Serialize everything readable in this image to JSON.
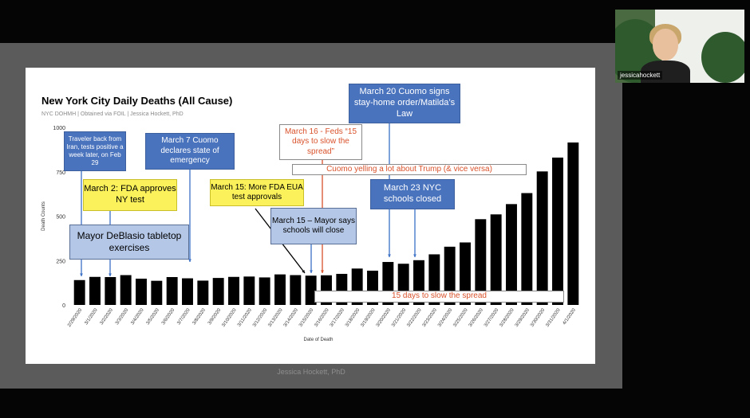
{
  "slide": {
    "title": "New York City Daily Deaths (All Cause)",
    "subtitle": "NYC DOHMH | Obtained via FOIL | Jessica Hockett, PhD",
    "footer": "Jessica Hockett, PhD"
  },
  "camera": {
    "participant_name": "jessicahockett"
  },
  "annotations": {
    "traveler": "Traveler back from Iran, tests positive a week later, on Feb 29",
    "march2": "March 2: FDA approves NY test",
    "deblasio": "Mayor DeBlasio tabletop exercises",
    "march7": "March 7 Cuomo declares state of emergency",
    "march15_fda": "March 15: More FDA EUA test approvals",
    "march15_mayor": "March 15 – Mayor says schools will close",
    "march16": "March 16 - Feds “15 days to slow the spread”",
    "march20": "March 20 Cuomo signs stay-home order/Matilda’s Law",
    "cuomo_trump": "Cuomo yelling a lot about Trump  (& vice versa)",
    "march23": "March 23 NYC schools closed",
    "fifteen_days": "15 days to slow the spread"
  },
  "chart_data": {
    "type": "bar",
    "title": "New York City Daily Deaths (All Cause)",
    "xlabel": "Date of Death",
    "ylabel": "Death Counts",
    "ylim": [
      0,
      1000
    ],
    "yticks": [
      0,
      250,
      500,
      750,
      1000
    ],
    "grid": false,
    "bar_color": "#000000",
    "categories": [
      "2/29/2020",
      "3/1/2020",
      "3/2/2020",
      "3/3/2020",
      "3/4/2020",
      "3/5/2020",
      "3/6/2020",
      "3/7/2020",
      "3/8/2020",
      "3/9/2020",
      "3/10/2020",
      "3/11/2020",
      "3/12/2020",
      "3/13/2020",
      "3/14/2020",
      "3/15/2020",
      "3/16/2020",
      "3/17/2020",
      "3/18/2020",
      "3/19/2020",
      "3/20/2020",
      "3/21/2020",
      "3/22/2020",
      "3/23/2020",
      "3/24/2020",
      "3/25/2020",
      "3/26/2020",
      "3/27/2020",
      "3/28/2020",
      "3/29/2020",
      "3/30/2020",
      "3/31/2020",
      "4/1/2020"
    ],
    "values": [
      140,
      158,
      157,
      168,
      148,
      136,
      157,
      150,
      137,
      152,
      158,
      160,
      155,
      172,
      168,
      165,
      167,
      175,
      205,
      193,
      242,
      232,
      252,
      285,
      328,
      352,
      483,
      510,
      568,
      630,
      752,
      830,
      915
    ]
  }
}
